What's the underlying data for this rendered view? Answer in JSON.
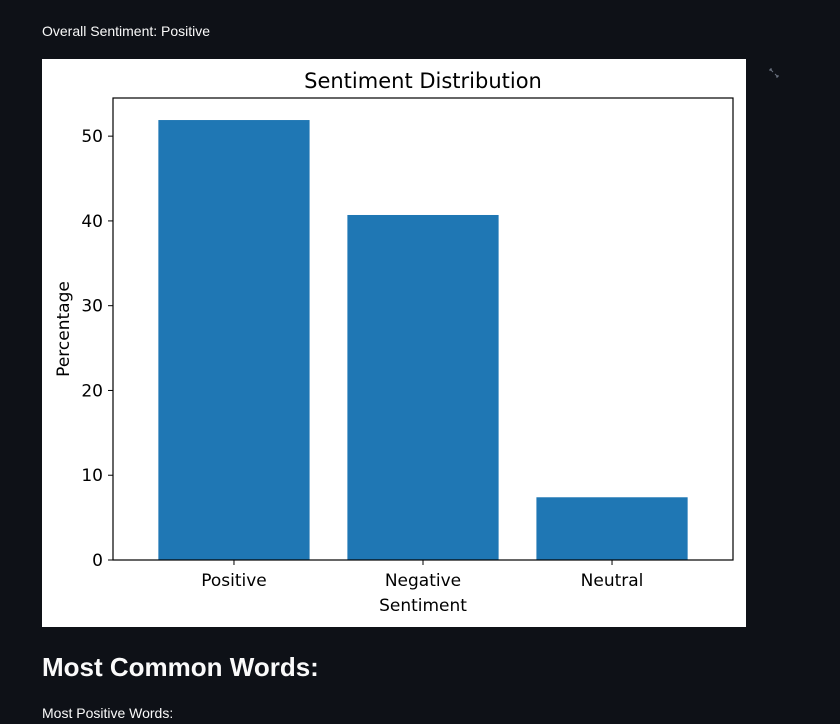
{
  "overall_sentiment_text": "Overall Sentiment: Positive",
  "section_title": "Most Common Words:",
  "most_positive_label": "Most Positive Words:",
  "icons": {
    "fullscreen": "fullscreen-icon"
  },
  "colors": {
    "background": "#0e1117",
    "bar": "#1f77b4",
    "text": "#fafafa"
  },
  "chart_data": {
    "type": "bar",
    "title": "Sentiment Distribution",
    "xlabel": "Sentiment",
    "ylabel": "Percentage",
    "categories": [
      "Positive",
      "Negative",
      "Neutral"
    ],
    "values": [
      51.9,
      40.7,
      7.4
    ],
    "ylim": [
      0,
      54.5
    ],
    "yticks": [
      0,
      10,
      20,
      30,
      40,
      50
    ],
    "grid": false,
    "legend": "none"
  }
}
